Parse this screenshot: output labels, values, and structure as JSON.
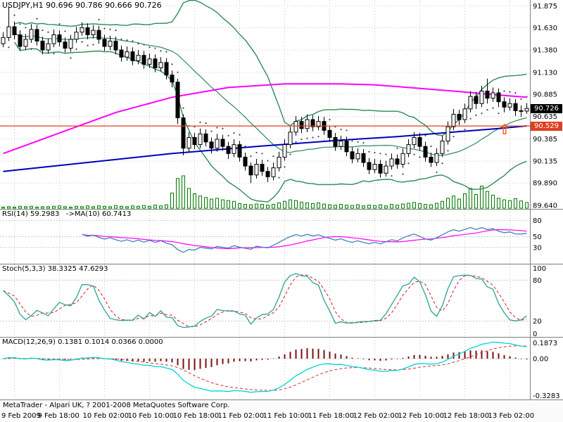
{
  "window": {
    "status_text": "MetaTrader - Alpari UK, ? 2001-2008 MetaQuotes Software Corp."
  },
  "header": {
    "title": "USDJPY,H1 90.696 90.786 90.666 90.726"
  },
  "badges": {
    "current_price": "90.726",
    "line_price": "90.529"
  },
  "icons": {
    "buy_arrow": "⇧"
  },
  "colors": {
    "grid": "#c6c6c6",
    "axis": "#808080",
    "bull": "#ffffff",
    "bear": "#000000",
    "outline": "#000000",
    "bollinger": "#2e8b57",
    "ma_fast": "#ff00ff",
    "ma_slow": "#0000bb",
    "hline": "#e1401d",
    "badge_current_bg": "#000000",
    "volume": "#007800",
    "sar": "#444444",
    "rsi": "#4682b4",
    "rsi_ma": "#ff00ff",
    "stoch_k": "#2aa198",
    "stoch_d": "#cc2222",
    "macd_line": "#00d4d4",
    "macd_signal": "#cc3333",
    "macd_hist": "#7a1010",
    "arrow": "#ff5a00"
  },
  "chart_data": {
    "type": "candlestick",
    "symbol": "USDJPY",
    "timeframe": "H1",
    "last_quote": {
      "open": 90.696,
      "high": 90.786,
      "low": 90.666,
      "close": 90.726
    },
    "price_axis": {
      "min": 89.6,
      "max": 91.94,
      "labels": [
        "91.875",
        "91.630",
        "91.380",
        "91.130",
        "90.885",
        "90.635",
        "90.385",
        "90.135",
        "89.890",
        "89.640"
      ]
    },
    "time_labels": [
      "9 Feb 2009",
      "9 Feb 18:00",
      "10 Feb 02:00",
      "10 Feb 10:00",
      "10 Feb 18:00",
      "11 Feb 02:00",
      "11 Feb 10:00",
      "11 Feb 18:00",
      "12 Feb 02:00",
      "12 Feb 10:00",
      "12 Feb 18:00",
      "13 Feb 02:00"
    ],
    "horizontal_line": 90.529,
    "buy_arrow": {
      "x_index": 89,
      "price": 90.44
    },
    "candles": [
      [
        91.45,
        91.58,
        91.41,
        91.52
      ],
      [
        91.52,
        91.87,
        91.48,
        91.64
      ],
      [
        91.64,
        91.7,
        91.5,
        91.55
      ],
      [
        91.55,
        91.6,
        91.37,
        91.42
      ],
      [
        91.42,
        91.56,
        91.38,
        91.5
      ],
      [
        91.5,
        91.67,
        91.46,
        91.61
      ],
      [
        91.61,
        91.66,
        91.43,
        91.48
      ],
      [
        91.48,
        91.53,
        91.33,
        91.38
      ],
      [
        91.38,
        91.51,
        91.34,
        91.45
      ],
      [
        91.45,
        91.61,
        91.41,
        91.55
      ],
      [
        91.55,
        91.6,
        91.42,
        91.47
      ],
      [
        91.47,
        91.52,
        91.35,
        91.4
      ],
      [
        91.4,
        91.55,
        91.36,
        91.5
      ],
      [
        91.5,
        91.64,
        91.46,
        91.58
      ],
      [
        91.58,
        91.69,
        91.54,
        91.63
      ],
      [
        91.63,
        91.68,
        91.5,
        91.55
      ],
      [
        91.55,
        91.66,
        91.51,
        91.6
      ],
      [
        91.6,
        91.65,
        91.45,
        91.5
      ],
      [
        91.5,
        91.55,
        91.37,
        91.42
      ],
      [
        91.42,
        91.54,
        91.38,
        91.48
      ],
      [
        91.48,
        91.53,
        91.33,
        91.38
      ],
      [
        91.38,
        91.43,
        91.25,
        91.3
      ],
      [
        91.3,
        91.42,
        91.26,
        91.36
      ],
      [
        91.36,
        91.41,
        91.21,
        91.26
      ],
      [
        91.26,
        91.38,
        91.22,
        91.32
      ],
      [
        91.32,
        91.37,
        91.17,
        91.22
      ],
      [
        91.22,
        91.34,
        91.18,
        91.28
      ],
      [
        91.28,
        91.33,
        91.13,
        91.18
      ],
      [
        91.18,
        91.3,
        91.14,
        91.24
      ],
      [
        91.24,
        91.29,
        91.05,
        91.1
      ],
      [
        91.1,
        91.15,
        90.96,
        91.02
      ],
      [
        91.02,
        91.06,
        90.55,
        90.62
      ],
      [
        90.62,
        90.66,
        90.2,
        90.28
      ],
      [
        90.28,
        90.46,
        90.24,
        90.4
      ],
      [
        90.4,
        90.45,
        90.27,
        90.32
      ],
      [
        90.32,
        90.5,
        90.28,
        90.44
      ],
      [
        90.44,
        90.49,
        90.3,
        90.35
      ],
      [
        90.35,
        90.4,
        90.22,
        90.28
      ],
      [
        90.28,
        90.44,
        90.24,
        90.38
      ],
      [
        90.38,
        90.43,
        90.25,
        90.3
      ],
      [
        90.3,
        90.35,
        90.16,
        90.22
      ],
      [
        90.22,
        90.38,
        90.18,
        90.32
      ],
      [
        90.32,
        90.36,
        90.13,
        90.18
      ],
      [
        90.18,
        90.23,
        90.03,
        90.08
      ],
      [
        90.08,
        90.12,
        89.89,
        89.98
      ],
      [
        89.98,
        90.16,
        89.94,
        90.1
      ],
      [
        90.1,
        90.15,
        89.97,
        90.02
      ],
      [
        90.02,
        90.07,
        89.9,
        89.96
      ],
      [
        89.96,
        90.12,
        89.92,
        90.06
      ],
      [
        90.06,
        90.24,
        90.02,
        90.18
      ],
      [
        90.18,
        90.38,
        90.14,
        90.32
      ],
      [
        90.32,
        90.52,
        90.28,
        90.46
      ],
      [
        90.46,
        90.64,
        90.42,
        90.58
      ],
      [
        90.58,
        90.63,
        90.45,
        90.5
      ],
      [
        90.5,
        90.66,
        90.46,
        90.6
      ],
      [
        90.6,
        90.65,
        90.47,
        90.52
      ],
      [
        90.52,
        90.64,
        90.48,
        90.58
      ],
      [
        90.58,
        90.63,
        90.43,
        90.48
      ],
      [
        90.48,
        90.53,
        90.35,
        90.4
      ],
      [
        90.4,
        90.45,
        90.25,
        90.3
      ],
      [
        90.3,
        90.42,
        90.26,
        90.36
      ],
      [
        90.36,
        90.41,
        90.19,
        90.24
      ],
      [
        90.24,
        90.29,
        90.11,
        90.16
      ],
      [
        90.16,
        90.28,
        90.12,
        90.22
      ],
      [
        90.22,
        90.27,
        90.07,
        90.12
      ],
      [
        90.12,
        90.17,
        89.99,
        90.04
      ],
      [
        90.04,
        90.16,
        90.0,
        90.1
      ],
      [
        90.1,
        90.15,
        89.95,
        90.0
      ],
      [
        90.0,
        90.14,
        89.96,
        90.08
      ],
      [
        90.08,
        90.22,
        90.04,
        90.16
      ],
      [
        90.16,
        90.21,
        90.05,
        90.1
      ],
      [
        90.1,
        90.28,
        90.06,
        90.22
      ],
      [
        90.22,
        90.38,
        90.18,
        90.32
      ],
      [
        90.32,
        90.46,
        90.28,
        90.4
      ],
      [
        90.4,
        90.45,
        90.25,
        90.3
      ],
      [
        90.3,
        90.35,
        90.13,
        90.18
      ],
      [
        90.18,
        90.23,
        90.07,
        90.12
      ],
      [
        90.12,
        90.28,
        90.08,
        90.22
      ],
      [
        90.22,
        90.42,
        90.18,
        90.36
      ],
      [
        90.36,
        90.58,
        90.32,
        90.52
      ],
      [
        90.52,
        90.72,
        90.48,
        90.66
      ],
      [
        90.66,
        90.71,
        90.54,
        90.6
      ],
      [
        90.6,
        90.78,
        90.56,
        90.72
      ],
      [
        90.72,
        90.92,
        90.68,
        90.86
      ],
      [
        90.86,
        90.91,
        90.72,
        90.78
      ],
      [
        90.78,
        90.98,
        90.74,
        90.92
      ],
      [
        90.92,
        91.06,
        90.78,
        90.84
      ],
      [
        90.84,
        90.96,
        90.8,
        90.9
      ],
      [
        90.9,
        90.95,
        90.74,
        90.8
      ],
      [
        90.8,
        90.85,
        90.68,
        90.74
      ],
      [
        90.74,
        90.84,
        90.7,
        90.78
      ],
      [
        90.78,
        90.83,
        90.64,
        90.7
      ],
      [
        90.7,
        90.76,
        90.63,
        90.696
      ],
      [
        90.696,
        90.786,
        90.666,
        90.726
      ]
    ],
    "volumes": [
      3,
      4,
      3,
      5,
      4,
      5,
      3,
      4,
      4,
      5,
      6,
      4,
      3,
      5,
      4,
      6,
      4,
      6,
      5,
      4,
      7,
      5,
      4,
      6,
      5,
      7,
      5,
      8,
      6,
      9,
      40,
      78,
      85,
      52,
      38,
      32,
      28,
      24,
      26,
      22,
      20,
      18,
      12,
      10,
      9,
      11,
      10,
      8,
      10,
      14,
      18,
      22,
      20,
      16,
      14,
      12,
      14,
      11,
      9,
      8,
      10,
      8,
      7,
      9,
      6,
      8,
      7,
      9,
      6,
      10,
      8,
      11,
      13,
      15,
      12,
      10,
      9,
      13,
      18,
      26,
      32,
      24,
      38,
      52,
      36,
      58,
      44,
      34,
      26,
      22,
      20,
      25,
      19,
      15
    ],
    "ma_magenta_points": [
      [
        0,
        90.22
      ],
      [
        10,
        90.45
      ],
      [
        20,
        90.68
      ],
      [
        30,
        90.85
      ],
      [
        40,
        90.96
      ],
      [
        50,
        91.0
      ],
      [
        60,
        91.0
      ],
      [
        66,
        90.99
      ],
      [
        72,
        90.96
      ],
      [
        80,
        90.92
      ],
      [
        87,
        90.88
      ],
      [
        93,
        90.85
      ]
    ],
    "ma_blue_points": [
      [
        0,
        90.02
      ],
      [
        15,
        90.12
      ],
      [
        30,
        90.22
      ],
      [
        45,
        90.3
      ],
      [
        60,
        90.37
      ],
      [
        70,
        90.41
      ],
      [
        80,
        90.46
      ],
      [
        88,
        90.5
      ],
      [
        93,
        90.53
      ]
    ],
    "indicators": {
      "bollinger": {
        "period": 20,
        "deviation": 2
      },
      "rsi": {
        "label": "RSI(14) 59.2983   ->MA(10) 60.7413",
        "period": 14,
        "ma_period": 10,
        "value": 59.2983,
        "ma_value": 60.7413,
        "levels": [
          80,
          50,
          30
        ]
      },
      "stoch": {
        "label": "Stoch(5,3,3) 38.3325 47.6293",
        "k": 5,
        "slowing": 3,
        "d": 3,
        "value_k": 38.3325,
        "value_d": 47.6293,
        "levels": [
          80,
          20
        ],
        "axis_labels": [
          "100",
          "80",
          "20",
          "0"
        ]
      },
      "macd": {
        "label": "MACD(12,26,9) 0.1381 0.1014 0.0366 0.0000",
        "fast": 12,
        "slow": 26,
        "signal": 9,
        "values": [
          0.1381,
          0.1014,
          0.0366,
          0.0
        ],
        "axis_labels": [
          "0.1873",
          "0.00",
          "-0.3283"
        ]
      }
    }
  }
}
